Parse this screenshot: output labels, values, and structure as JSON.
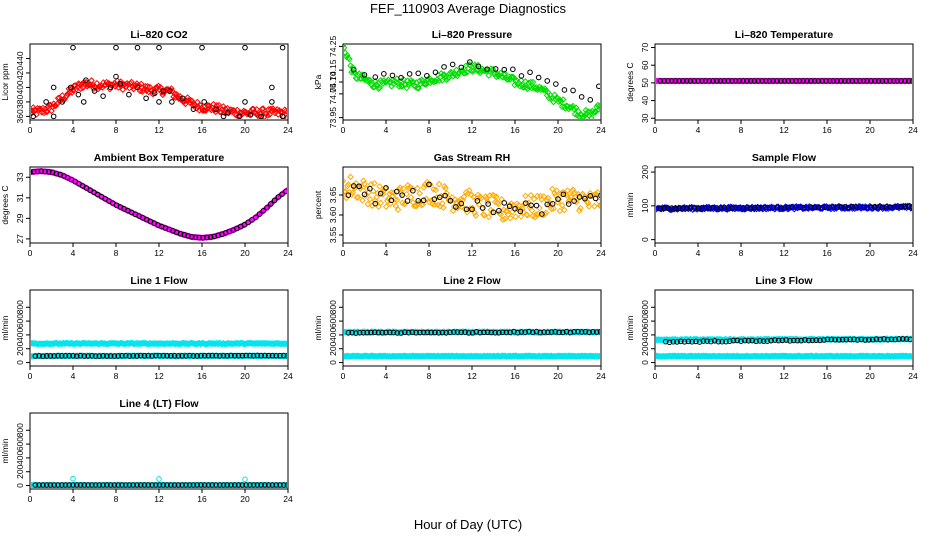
{
  "page": {
    "title": "FEF_110903  Average Diagnostics",
    "xlabel": "Hour of Day (UTC)"
  },
  "chart_data": [
    {
      "type": "scatter",
      "title": "Li–820 CO2",
      "ylabel": "Licor ppm",
      "xlim": [
        0,
        24
      ],
      "ylim": [
        355,
        460
      ],
      "xticks": [
        0,
        4,
        8,
        12,
        16,
        20,
        24
      ],
      "yticks": [
        360,
        380,
        400,
        420,
        440
      ],
      "series": [
        {
          "color": "#ff0000",
          "shape": "diamond",
          "dense": true,
          "jitter": 6,
          "x": [
            0,
            1,
            2,
            3,
            4,
            5,
            6,
            7,
            8,
            9,
            10,
            11,
            12,
            13,
            14,
            15,
            16,
            17,
            18,
            19,
            20,
            21,
            22,
            23,
            24
          ],
          "y": [
            366,
            367,
            372,
            385,
            397,
            405,
            404,
            403,
            404,
            402,
            401,
            397,
            396,
            395,
            385,
            378,
            373,
            372,
            368,
            366,
            365,
            365,
            365,
            365,
            364
          ]
        },
        {
          "color": "#000000",
          "shape": "circle",
          "dense": false,
          "jitter": 0,
          "x": [
            0.3,
            1.5,
            2.2,
            3,
            3.8,
            4.5,
            5.2,
            6,
            6.8,
            7.5,
            8.4,
            9.2,
            10,
            10.8,
            11.6,
            12.4,
            13.2,
            14.2,
            15.2,
            16.2,
            17.3,
            18.4,
            19.5,
            20.5,
            21.5,
            22.5,
            23.5,
            2.2,
            5,
            8,
            12,
            13,
            18,
            20,
            22.5,
            4,
            8,
            10,
            12,
            16,
            20,
            23.5
          ],
          "y": [
            360,
            380,
            360,
            380,
            400,
            390,
            410,
            395,
            388,
            400,
            405,
            390,
            400,
            385,
            392,
            395,
            380,
            385,
            370,
            380,
            370,
            365,
            360,
            362,
            360,
            380,
            360,
            400,
            380,
            415,
            380,
            395,
            360,
            380,
            400,
            455,
            455,
            455,
            455,
            455,
            455,
            455
          ]
        }
      ]
    },
    {
      "type": "scatter",
      "title": "Li–820 Pressure",
      "ylabel": "kPa",
      "xlim": [
        0,
        24
      ],
      "ylim": [
        73.94,
        74.26
      ],
      "xticks": [
        0,
        4,
        8,
        12,
        16,
        20,
        24
      ],
      "yticks": [
        73.95,
        74.05,
        74.1,
        74.15,
        74.25
      ],
      "series": [
        {
          "color": "#00dd00",
          "shape": "diamond",
          "dense": true,
          "jitter": 0.018,
          "x": [
            0,
            0.5,
            1,
            2,
            3,
            4,
            5,
            6,
            7,
            8,
            9,
            10,
            11,
            12,
            13,
            14,
            15,
            16,
            17,
            18,
            19,
            20,
            21,
            22,
            23,
            24
          ],
          "y": [
            74.25,
            74.2,
            74.13,
            74.11,
            74.09,
            74.09,
            74.1,
            74.09,
            74.09,
            74.11,
            74.12,
            74.13,
            74.15,
            74.16,
            74.15,
            74.14,
            74.12,
            74.1,
            74.09,
            74.08,
            74.05,
            74.02,
            74.0,
            73.97,
            73.96,
            74.0
          ]
        },
        {
          "color": "#000000",
          "shape": "circle",
          "dense": false,
          "jitter": 0.006,
          "x": [
            1,
            2,
            3,
            3.8,
            4.6,
            5.4,
            6.2,
            7,
            7.8,
            8.6,
            9.4,
            10.2,
            11,
            11.8,
            12.6,
            13.4,
            14.2,
            15,
            15.8,
            16.6,
            17.4,
            18.2,
            19,
            19.8,
            20.6,
            21.4,
            22.2,
            23,
            23.8
          ],
          "y": [
            74.15,
            74.13,
            74.12,
            74.14,
            74.13,
            74.12,
            74.13,
            74.14,
            74.13,
            74.14,
            74.16,
            74.17,
            74.16,
            74.18,
            74.17,
            74.15,
            74.16,
            74.15,
            74.15,
            74.13,
            74.14,
            74.12,
            74.1,
            74.09,
            74.07,
            74.06,
            74.04,
            74.02,
            74.08
          ]
        }
      ]
    },
    {
      "type": "scatter",
      "title": "Li–820 Temperature",
      "ylabel": "degrees C",
      "xlim": [
        0,
        24
      ],
      "ylim": [
        29,
        72
      ],
      "xticks": [
        0,
        4,
        8,
        12,
        16,
        20,
        24
      ],
      "yticks": [
        30,
        40,
        50,
        60,
        70
      ],
      "series": [
        {
          "color": "#ff00ff",
          "shape": "diamond",
          "dense": true,
          "jitter": 0,
          "x": [
            0,
            24
          ],
          "y": [
            51.1,
            51.1
          ]
        },
        {
          "color": "#000000",
          "shape": "circle",
          "dense": false,
          "jitter": 0,
          "x": [
            0.5,
            24
          ],
          "y": [
            51.1,
            51.1
          ],
          "step": 0.35
        }
      ]
    },
    {
      "type": "scatter",
      "title": "Ambient Box Temperature",
      "ylabel": "degrees C",
      "xlim": [
        0,
        24
      ],
      "ylim": [
        26.6,
        34
      ],
      "xticks": [
        0,
        4,
        8,
        12,
        16,
        20,
        24
      ],
      "yticks": [
        27,
        29,
        31,
        33
      ],
      "series": [
        {
          "color": "#ff00ff",
          "shape": "diamond",
          "dense": true,
          "jitter": 0,
          "x": [
            0,
            1,
            2,
            3,
            4,
            5,
            6,
            7,
            8,
            9,
            10,
            11,
            12,
            13,
            14,
            15,
            16,
            17,
            18,
            19,
            20,
            21,
            22,
            23,
            24
          ],
          "y": [
            33.5,
            33.6,
            33.5,
            33.2,
            32.7,
            32.1,
            31.5,
            30.9,
            30.3,
            29.8,
            29.3,
            28.8,
            28.3,
            27.9,
            27.5,
            27.2,
            27.1,
            27.2,
            27.5,
            27.9,
            28.4,
            29.1,
            30.0,
            31.0,
            31.8
          ]
        },
        {
          "color": "#000000",
          "shape": "circle",
          "dense": false,
          "jitter": 0,
          "x": [
            0,
            1,
            2,
            3,
            4,
            5,
            6,
            7,
            8,
            9,
            10,
            11,
            12,
            13,
            14,
            15,
            16,
            17,
            18,
            19,
            20,
            21,
            22,
            23,
            24
          ],
          "y": [
            33.5,
            33.6,
            33.5,
            33.2,
            32.7,
            32.1,
            31.5,
            30.9,
            30.3,
            29.8,
            29.3,
            28.8,
            28.3,
            27.9,
            27.5,
            27.2,
            27.1,
            27.2,
            27.5,
            27.9,
            28.4,
            29.1,
            30.0,
            31.0,
            31.8
          ],
          "step": 0.35
        }
      ]
    },
    {
      "type": "scatter",
      "title": "Gas Stream RH",
      "ylabel": "percent",
      "xlim": [
        0,
        24
      ],
      "ylim": [
        3.53,
        3.72
      ],
      "xticks": [
        0,
        4,
        8,
        12,
        16,
        20,
        24
      ],
      "yticks": [
        3.55,
        3.6,
        3.65
      ],
      "series": [
        {
          "color": "#ffaa00",
          "shape": "diamond",
          "dense": true,
          "jitter": 0.03,
          "x": [
            0,
            1,
            2,
            3,
            4,
            5,
            6,
            7,
            8,
            9,
            10,
            11,
            12,
            13,
            14,
            15,
            16,
            17,
            18,
            19,
            20,
            21,
            22,
            23,
            24
          ],
          "y": [
            3.67,
            3.67,
            3.66,
            3.65,
            3.64,
            3.64,
            3.65,
            3.65,
            3.66,
            3.65,
            3.64,
            3.64,
            3.63,
            3.62,
            3.62,
            3.61,
            3.62,
            3.62,
            3.62,
            3.63,
            3.64,
            3.64,
            3.64,
            3.63,
            3.64
          ]
        },
        {
          "color": "#000000",
          "shape": "circle",
          "dense": false,
          "jitter": 0.012,
          "x": [
            0.5,
            1,
            1.5,
            2,
            2.5,
            3,
            3.5,
            4,
            4.5,
            5,
            5.5,
            6,
            6.5,
            7,
            7.5,
            8,
            8.5,
            9,
            9.5,
            10,
            10.5,
            11,
            11.5,
            12,
            12.5,
            13,
            13.5,
            14,
            14.5,
            15,
            15.5,
            16,
            16.5,
            17,
            17.5,
            18,
            18.5,
            19,
            19.5,
            20,
            20.5,
            21,
            21.5,
            22,
            22.5,
            23,
            23.5,
            24
          ],
          "y": [
            3.64,
            3.68,
            3.66,
            3.65,
            3.66,
            3.64,
            3.65,
            3.66,
            3.64,
            3.65,
            3.66,
            3.64,
            3.65,
            3.63,
            3.64,
            3.67,
            3.64,
            3.65,
            3.66,
            3.64,
            3.63,
            3.63,
            3.62,
            3.62,
            3.63,
            3.61,
            3.62,
            3.6,
            3.62,
            3.63,
            3.61,
            3.62,
            3.61,
            3.64,
            3.62,
            3.62,
            3.6,
            3.63,
            3.62,
            3.63,
            3.64,
            3.62,
            3.63,
            3.64,
            3.64,
            3.65,
            3.64,
            3.65
          ]
        }
      ]
    },
    {
      "type": "scatter",
      "title": "Sample Flow",
      "ylabel": "ml/min",
      "xlim": [
        0,
        24
      ],
      "ylim": [
        -10,
        215
      ],
      "xticks": [
        0,
        4,
        8,
        12,
        16,
        20,
        24
      ],
      "yticks": [
        0,
        100,
        200
      ],
      "series": [
        {
          "color": "#0000ff",
          "shape": "diamond",
          "dense": true,
          "jitter": 4,
          "x": [
            0,
            24
          ],
          "y": [
            92,
            96
          ]
        },
        {
          "color": "#000000",
          "shape": "circle",
          "dense": false,
          "jitter": 1,
          "x": [
            0.5,
            24
          ],
          "y": [
            93,
            97
          ],
          "step": 0.35
        }
      ]
    },
    {
      "type": "scatter",
      "title": "Line 1 Flow",
      "ylabel": "ml/min",
      "xlim": [
        0,
        24
      ],
      "ylim": [
        -50,
        1050
      ],
      "xticks": [
        0,
        4,
        8,
        12,
        16,
        20,
        24
      ],
      "yticks": [
        0,
        200,
        400,
        600,
        800
      ],
      "series": [
        {
          "color": "#00e5ee",
          "shape": "diamond",
          "dense": true,
          "jitter": 8,
          "x": [
            0,
            24
          ],
          "y": [
            275,
            275
          ]
        },
        {
          "color": "#00e5ee",
          "shape": "diamond",
          "dense": true,
          "jitter": 6,
          "x": [
            0,
            24
          ],
          "y": [
            95,
            95
          ]
        },
        {
          "color": "#000000",
          "shape": "circle",
          "dense": false,
          "jitter": 3,
          "x": [
            0.5,
            24
          ],
          "y": [
            95,
            100
          ],
          "step": 0.35
        }
      ]
    },
    {
      "type": "scatter",
      "title": "Line 2 Flow",
      "ylabel": "ml/min",
      "xlim": [
        0,
        24
      ],
      "ylim": [
        -50,
        1050
      ],
      "xticks": [
        0,
        4,
        8,
        12,
        16,
        20,
        24
      ],
      "yticks": [
        0,
        200,
        400,
        600,
        800
      ],
      "series": [
        {
          "color": "#00e5ee",
          "shape": "diamond",
          "dense": true,
          "jitter": 8,
          "x": [
            0,
            24
          ],
          "y": [
            440,
            440
          ]
        },
        {
          "color": "#00e5ee",
          "shape": "diamond",
          "dense": true,
          "jitter": 6,
          "x": [
            0,
            24
          ],
          "y": [
            92,
            92
          ]
        },
        {
          "color": "#000000",
          "shape": "circle",
          "dense": false,
          "jitter": 8,
          "x": [
            0.5,
            24
          ],
          "y": [
            430,
            445
          ],
          "step": 0.35
        }
      ]
    },
    {
      "type": "scatter",
      "title": "Line 3 Flow",
      "ylabel": "ml/min",
      "xlim": [
        0,
        24
      ],
      "ylim": [
        -50,
        1050
      ],
      "xticks": [
        0,
        4,
        8,
        12,
        16,
        20,
        24
      ],
      "yticks": [
        0,
        200,
        400,
        600,
        800
      ],
      "series": [
        {
          "color": "#00e5ee",
          "shape": "diamond",
          "dense": true,
          "jitter": 8,
          "x": [
            0,
            24
          ],
          "y": [
            330,
            340
          ]
        },
        {
          "color": "#00e5ee",
          "shape": "diamond",
          "dense": true,
          "jitter": 6,
          "x": [
            0,
            24
          ],
          "y": [
            92,
            92
          ]
        },
        {
          "color": "#000000",
          "shape": "circle",
          "dense": false,
          "jitter": 8,
          "x": [
            1,
            24
          ],
          "y": [
            300,
            340
          ],
          "step": 0.35
        }
      ]
    },
    {
      "type": "scatter",
      "title": "Line 4 (LT) Flow",
      "ylabel": "ml/min",
      "xlim": [
        0,
        24
      ],
      "ylim": [
        -50,
        1050
      ],
      "xticks": [
        0,
        4,
        8,
        12,
        16,
        20,
        24
      ],
      "yticks": [
        0,
        200,
        400,
        600,
        800
      ],
      "series": [
        {
          "color": "#00e5ee",
          "shape": "circle",
          "dense": false,
          "jitter": 0,
          "x": [
            0,
            4,
            12,
            20
          ],
          "y": [
            5,
            100,
            95,
            90
          ]
        },
        {
          "color": "#00e5ee",
          "shape": "diamond",
          "dense": true,
          "jitter": 3,
          "x": [
            0,
            24
          ],
          "y": [
            5,
            5
          ]
        },
        {
          "color": "#000000",
          "shape": "circle",
          "dense": false,
          "jitter": 0,
          "x": [
            0.5,
            24
          ],
          "y": [
            8,
            8
          ],
          "step": 0.35
        }
      ]
    }
  ]
}
